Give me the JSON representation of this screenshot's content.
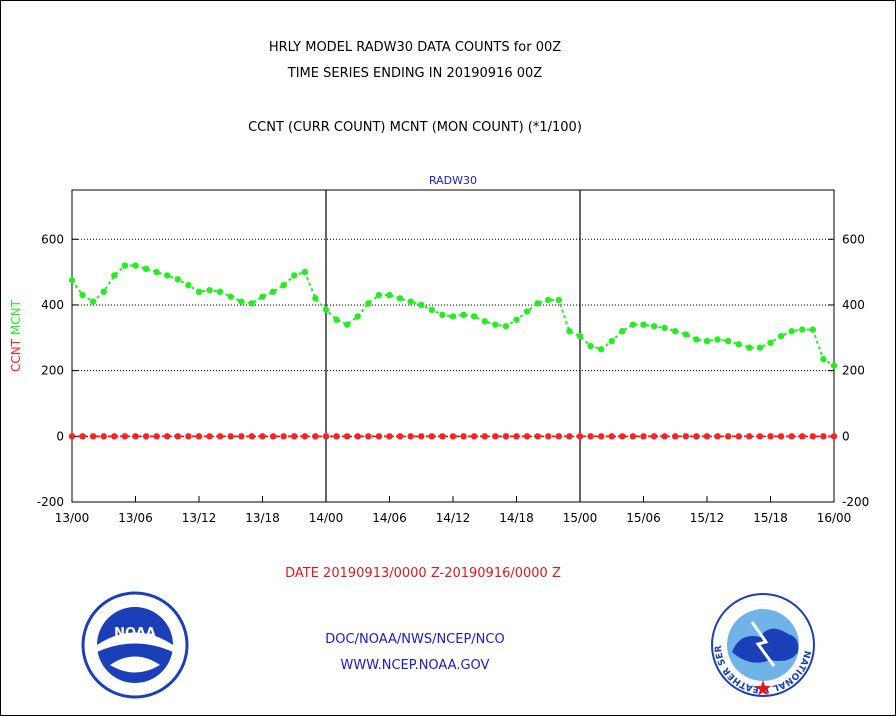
{
  "header": {
    "line1": "HRLY MODEL RADW30 DATA COUNTS for 00Z",
    "line2": "TIME SERIES ENDING IN 20190916 00Z",
    "line3": "CCNT (CURR COUNT) MCNT (MON COUNT) (*1/100)"
  },
  "chart_data": {
    "type": "line",
    "title": "RADW30",
    "ylabel_parts": [
      "CCNT",
      "MCNT"
    ],
    "ylim": [
      -200,
      750
    ],
    "yticks": [
      -200,
      0,
      200,
      400,
      600
    ],
    "xticks": [
      "13/00",
      "13/06",
      "13/12",
      "13/18",
      "14/00",
      "14/06",
      "14/12",
      "14/18",
      "15/00",
      "15/06",
      "15/12",
      "15/18",
      "16/00"
    ],
    "xlim_hours": [
      0,
      72
    ],
    "grid": true,
    "series": [
      {
        "name": "CCNT",
        "color": "#ff2020",
        "values": [
          0,
          0,
          0,
          0,
          0,
          0,
          0,
          0,
          0,
          0,
          0,
          0,
          0,
          0,
          0,
          0,
          0,
          0,
          0,
          0,
          0,
          0,
          0,
          0,
          0,
          0,
          0,
          0,
          0,
          0,
          0,
          0,
          0,
          0,
          0,
          0,
          0,
          0,
          0,
          0,
          0,
          0,
          0,
          0,
          0,
          0,
          0,
          0,
          0,
          0,
          0,
          0,
          0,
          0,
          0,
          0,
          0,
          0,
          0,
          0,
          0,
          0,
          0,
          0,
          0,
          0,
          0,
          0,
          0,
          0,
          0,
          0,
          0
        ]
      },
      {
        "name": "MCNT",
        "color": "#22ee22",
        "values": [
          475,
          430,
          410,
          440,
          490,
          520,
          520,
          510,
          500,
          490,
          478,
          460,
          440,
          445,
          440,
          425,
          410,
          405,
          425,
          440,
          460,
          490,
          500,
          420,
          385,
          355,
          340,
          365,
          405,
          430,
          430,
          420,
          410,
          400,
          385,
          370,
          365,
          370,
          365,
          350,
          340,
          335,
          355,
          380,
          405,
          415,
          415,
          320,
          305,
          275,
          265,
          290,
          320,
          340,
          340,
          335,
          330,
          320,
          310,
          295,
          290,
          295,
          290,
          280,
          270,
          270,
          285,
          305,
          320,
          325,
          325,
          235,
          215
        ]
      }
    ]
  },
  "date_range": "DATE 20190913/0000 Z-20190916/0000 Z",
  "footer": {
    "line1": "DOC/NOAA/NWS/NCEP/NCO",
    "line2": "WWW.NCEP.NOAA.GOV"
  },
  "logos": {
    "left": "NOAA",
    "right_ring": "NATIONAL WEATHER SERVICE"
  },
  "colors": {
    "ccnt": "#ff2020",
    "mcnt": "#22ee22",
    "footer": "#1a1ad0",
    "date": "#e01818"
  }
}
